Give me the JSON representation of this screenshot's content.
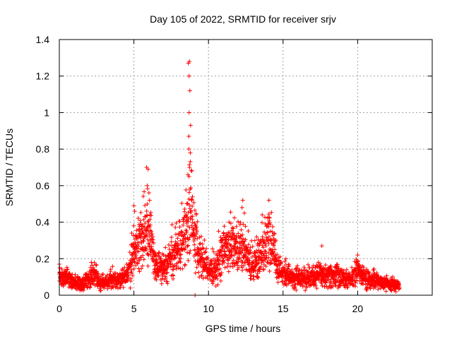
{
  "chart_data": {
    "type": "scatter",
    "title": "Day 105 of 2022, SRMTID for receiver srjv",
    "xlabel": "GPS time / hours",
    "ylabel": "SRMTID / TECUs",
    "xlim": [
      0,
      25
    ],
    "ylim": [
      0,
      1.4
    ],
    "xticks": [
      0,
      5,
      10,
      15,
      20
    ],
    "xtick_labels": [
      "0",
      "5",
      "10",
      "15",
      "20"
    ],
    "yticks": [
      0,
      0.2,
      0.4,
      0.6,
      0.8,
      1,
      1.2,
      1.4
    ],
    "ytick_labels": [
      "0",
      "0.2",
      "0.4",
      "0.6",
      "0.8",
      "1",
      "1.2",
      "1.4"
    ],
    "grid": true,
    "marker": "+",
    "color": "#ff0000",
    "series": [
      {
        "name": "SRMTID",
        "sampling": "every 30 seconds, 0.0 to 22.8 h (estimated)",
        "trend": [
          [
            0.0,
            0.1
          ],
          [
            0.5,
            0.1
          ],
          [
            1.0,
            0.07
          ],
          [
            1.5,
            0.06
          ],
          [
            2.0,
            0.09
          ],
          [
            2.3,
            0.12
          ],
          [
            2.7,
            0.07
          ],
          [
            3.0,
            0.06
          ],
          [
            3.5,
            0.09
          ],
          [
            4.0,
            0.08
          ],
          [
            4.5,
            0.1
          ],
          [
            4.8,
            0.16
          ],
          [
            5.0,
            0.25
          ],
          [
            5.3,
            0.3
          ],
          [
            5.6,
            0.28
          ],
          [
            5.9,
            0.4
          ],
          [
            6.2,
            0.25
          ],
          [
            6.5,
            0.15
          ],
          [
            7.0,
            0.15
          ],
          [
            7.5,
            0.2
          ],
          [
            8.0,
            0.25
          ],
          [
            8.5,
            0.35
          ],
          [
            8.8,
            0.48
          ],
          [
            9.0,
            0.35
          ],
          [
            9.3,
            0.28
          ],
          [
            9.6,
            0.2
          ],
          [
            10.0,
            0.12
          ],
          [
            10.5,
            0.15
          ],
          [
            11.0,
            0.25
          ],
          [
            11.5,
            0.28
          ],
          [
            12.0,
            0.25
          ],
          [
            12.3,
            0.3
          ],
          [
            12.6,
            0.2
          ],
          [
            13.0,
            0.15
          ],
          [
            13.5,
            0.22
          ],
          [
            14.0,
            0.3
          ],
          [
            14.3,
            0.28
          ],
          [
            14.6,
            0.15
          ],
          [
            15.0,
            0.12
          ],
          [
            15.5,
            0.1
          ],
          [
            16.0,
            0.1
          ],
          [
            16.5,
            0.09
          ],
          [
            17.0,
            0.1
          ],
          [
            17.5,
            0.12
          ],
          [
            18.0,
            0.1
          ],
          [
            18.5,
            0.12
          ],
          [
            19.0,
            0.09
          ],
          [
            19.5,
            0.08
          ],
          [
            20.0,
            0.14
          ],
          [
            20.5,
            0.1
          ],
          [
            21.0,
            0.08
          ],
          [
            21.5,
            0.07
          ],
          [
            22.0,
            0.06
          ],
          [
            22.8,
            0.05
          ]
        ],
        "notable_points": [
          [
            8.65,
            1.27
          ],
          [
            8.72,
            1.28
          ],
          [
            8.7,
            1.2
          ],
          [
            8.75,
            1.12
          ],
          [
            8.7,
            1.0
          ],
          [
            8.8,
            0.93
          ],
          [
            8.68,
            0.87
          ],
          [
            8.78,
            0.78
          ],
          [
            8.73,
            0.7
          ],
          [
            8.62,
            0.66
          ],
          [
            5.85,
            0.7
          ],
          [
            5.95,
            0.69
          ],
          [
            5.9,
            0.6
          ],
          [
            6.05,
            0.52
          ],
          [
            12.3,
            0.52
          ],
          [
            12.25,
            0.48
          ],
          [
            14.05,
            0.52
          ],
          [
            5.0,
            0.49
          ],
          [
            5.05,
            0.46
          ],
          [
            9.1,
            0.0
          ],
          [
            17.6,
            0.27
          ],
          [
            20.0,
            0.22
          ],
          [
            2.15,
            0.18
          ],
          [
            0.0,
            0.17
          ]
        ]
      }
    ]
  }
}
